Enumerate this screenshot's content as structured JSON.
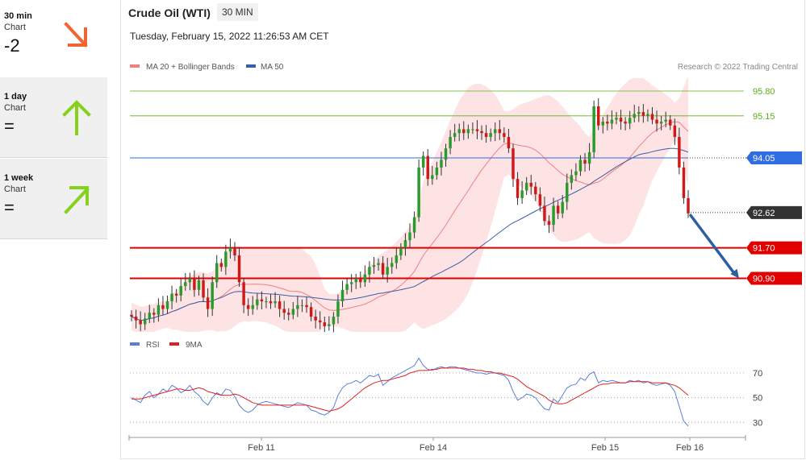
{
  "timeframes": [
    {
      "title": "30 min",
      "sub": "Chart",
      "value": "-2",
      "arrow": "arrow-down-right",
      "color": "#f26432"
    },
    {
      "title": "1 day",
      "sub": "Chart",
      "value": "=",
      "arrow": "arrow-up",
      "color": "#86d11a"
    },
    {
      "title": "1 week",
      "sub": "Chart",
      "value": "=",
      "arrow": "arrow-up-right",
      "color": "#86d11a"
    }
  ],
  "header": {
    "title": "Crude Oil (WTI)",
    "interval": "30 MIN",
    "datetime": "Tuesday, February 15, 2022 11:26:53 AM CET"
  },
  "chart_data": {
    "type": "candlestick",
    "legend": [
      {
        "label": "MA 20 + Bollinger Bands",
        "color": "#f08080"
      },
      {
        "label": "MA 50",
        "color": "#3a5ea8"
      }
    ],
    "credit": "Research © 2022 Trading Central",
    "ylim": [
      89.5,
      96.2
    ],
    "levels": [
      {
        "value": 95.8,
        "label": "95.80",
        "kind": "target",
        "color": "#5cae1c"
      },
      {
        "value": 95.15,
        "label": "95.15",
        "kind": "target",
        "color": "#5cae1c"
      },
      {
        "value": 94.05,
        "label": "94.05",
        "kind": "pivot",
        "color": "#2f6de0"
      },
      {
        "value": 92.62,
        "label": "92.62",
        "kind": "last",
        "color": "#333333"
      },
      {
        "value": 91.7,
        "label": "91.70",
        "kind": "support",
        "color": "#e00000"
      },
      {
        "value": 90.9,
        "label": "90.90",
        "kind": "support",
        "color": "#e00000"
      }
    ],
    "forecast_arrow": {
      "from": 92.55,
      "to": 90.9,
      "color": "#2e5f9e"
    },
    "x_ticks": [
      "Feb 11",
      "Feb 14",
      "Feb 15",
      "Feb 16"
    ],
    "closes": [
      89.9,
      89.8,
      89.7,
      89.85,
      90.0,
      89.95,
      90.2,
      90.1,
      90.3,
      90.5,
      90.45,
      90.7,
      90.8,
      90.9,
      90.6,
      90.85,
      90.4,
      90.1,
      90.8,
      91.3,
      91.2,
      91.6,
      91.7,
      91.5,
      90.8,
      90.2,
      90.1,
      90.2,
      90.35,
      90.3,
      90.3,
      90.25,
      90.3,
      90.1,
      90.0,
      89.95,
      90.1,
      90.2,
      90.2,
      90.15,
      89.9,
      89.8,
      89.75,
      89.65,
      89.7,
      89.9,
      90.3,
      90.6,
      90.75,
      90.8,
      90.9,
      90.8,
      91.0,
      91.2,
      91.25,
      91.3,
      91.0,
      91.2,
      91.3,
      91.5,
      91.7,
      91.9,
      92.1,
      92.5,
      93.8,
      94.1,
      93.5,
      93.6,
      93.8,
      94.0,
      94.3,
      94.6,
      94.7,
      94.8,
      94.7,
      94.8,
      94.8,
      94.75,
      94.7,
      94.6,
      94.7,
      94.8,
      94.7,
      94.6,
      94.3,
      93.5,
      93.0,
      93.2,
      93.4,
      93.3,
      93.1,
      92.8,
      92.4,
      92.3,
      92.8,
      92.6,
      92.9,
      93.4,
      93.6,
      93.7,
      94.0,
      93.9,
      94.2,
      95.4,
      94.9,
      95.0,
      94.95,
      95.05,
      95.1,
      95.0,
      94.95,
      95.1,
      95.2,
      95.25,
      95.15,
      95.2,
      95.05,
      94.95,
      95.0,
      95.05,
      94.9,
      94.6,
      93.8,
      93.0,
      92.6
    ]
  },
  "rsi": {
    "legend": [
      {
        "label": "RSI",
        "color": "#5b7fd9"
      },
      {
        "label": "9MA",
        "color": "#e02020"
      }
    ],
    "levels": [
      70,
      50,
      30
    ],
    "ylim": [
      25,
      85
    ],
    "rsi": [
      50,
      48,
      46,
      52,
      55,
      50,
      53,
      57,
      55,
      60,
      58,
      54,
      56,
      60,
      55,
      52,
      47,
      44,
      50,
      54,
      52,
      57,
      56,
      51,
      44,
      40,
      38,
      40,
      44,
      46,
      47,
      46,
      45,
      44,
      43,
      42,
      44,
      46,
      45,
      44,
      40,
      39,
      37,
      36,
      38,
      42,
      52,
      58,
      61,
      62,
      64,
      62,
      65,
      68,
      67,
      69,
      60,
      63,
      66,
      68,
      70,
      72,
      74,
      76,
      82,
      76,
      73,
      72,
      74,
      75,
      74,
      75,
      75,
      74,
      73,
      72,
      71,
      70,
      70,
      69,
      70,
      70,
      69,
      68,
      64,
      55,
      48,
      50,
      53,
      52,
      50,
      45,
      41,
      40,
      49,
      46,
      52,
      58,
      60,
      61,
      66,
      64,
      69,
      71,
      62,
      64,
      63,
      64,
      63,
      62,
      62,
      64,
      63,
      64,
      62,
      63,
      61,
      60,
      61,
      62,
      60,
      55,
      43,
      31,
      27
    ],
    "ma": [
      49,
      49,
      49,
      50,
      51,
      52,
      53,
      54,
      55,
      56,
      57,
      57,
      56,
      56,
      57,
      58,
      57,
      55,
      54,
      53,
      52,
      52,
      52,
      53,
      52,
      50,
      48,
      46,
      45,
      44,
      44,
      44,
      44,
      44,
      44,
      44,
      44,
      44,
      44,
      44,
      43,
      42,
      41,
      40,
      39,
      40,
      41,
      43,
      46,
      49,
      52,
      55,
      58,
      60,
      62,
      63,
      64,
      64,
      65,
      66,
      67,
      68,
      70,
      71,
      72,
      72,
      72,
      73,
      73,
      74,
      74,
      74,
      74,
      74,
      74,
      73,
      73,
      72,
      72,
      71,
      71,
      70,
      70,
      69,
      68,
      67,
      65,
      62,
      59,
      57,
      55,
      53,
      51,
      48,
      46,
      45,
      45,
      46,
      48,
      50,
      52,
      54,
      56,
      58,
      60,
      61,
      61,
      62,
      62,
      62,
      62,
      63,
      63,
      63,
      63,
      63,
      62,
      62,
      62,
      62,
      61,
      60,
      58,
      55,
      52
    ]
  }
}
